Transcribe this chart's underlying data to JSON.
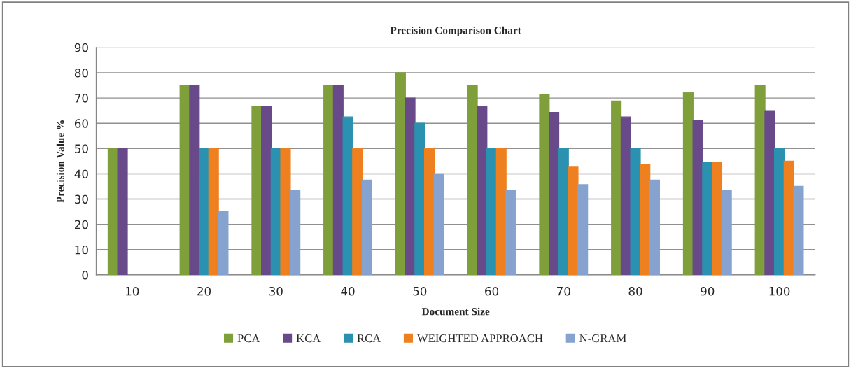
{
  "chart_data": {
    "type": "bar",
    "title": "Precision Comparison Chart",
    "xlabel": "Document Size",
    "ylabel": "Precision Value %",
    "categories": [
      "10",
      "20",
      "30",
      "40",
      "50",
      "60",
      "70",
      "80",
      "90",
      "100"
    ],
    "series": [
      {
        "name": "PCA",
        "color": "#7f9f3a",
        "values": [
          50,
          75,
          66.7,
          75,
          80,
          75,
          71.4,
          68.8,
          72.2,
          75
        ]
      },
      {
        "name": "KCA",
        "color": "#684a8a",
        "values": [
          50,
          75,
          66.7,
          75,
          70,
          66.7,
          64.3,
          62.5,
          61.1,
          65
        ]
      },
      {
        "name": "RCA",
        "color": "#2a91b0",
        "values": [
          null,
          50,
          50,
          62.5,
          60,
          50,
          50,
          50,
          44.4,
          50
        ]
      },
      {
        "name": "WEIGHTED APPROACH",
        "color": "#ee801f",
        "values": [
          null,
          50,
          50,
          50,
          50,
          50,
          42.9,
          43.8,
          44.4,
          45
        ]
      },
      {
        "name": "N-GRAM",
        "color": "#86a3cf",
        "values": [
          null,
          25,
          33.3,
          37.5,
          40,
          33.3,
          35.7,
          37.5,
          33.3,
          35
        ]
      }
    ],
    "ylim": [
      0,
      90
    ],
    "yticks": [
      0,
      10,
      20,
      30,
      40,
      50,
      60,
      70,
      80,
      90
    ],
    "grid": "y",
    "legend": "bottom"
  }
}
